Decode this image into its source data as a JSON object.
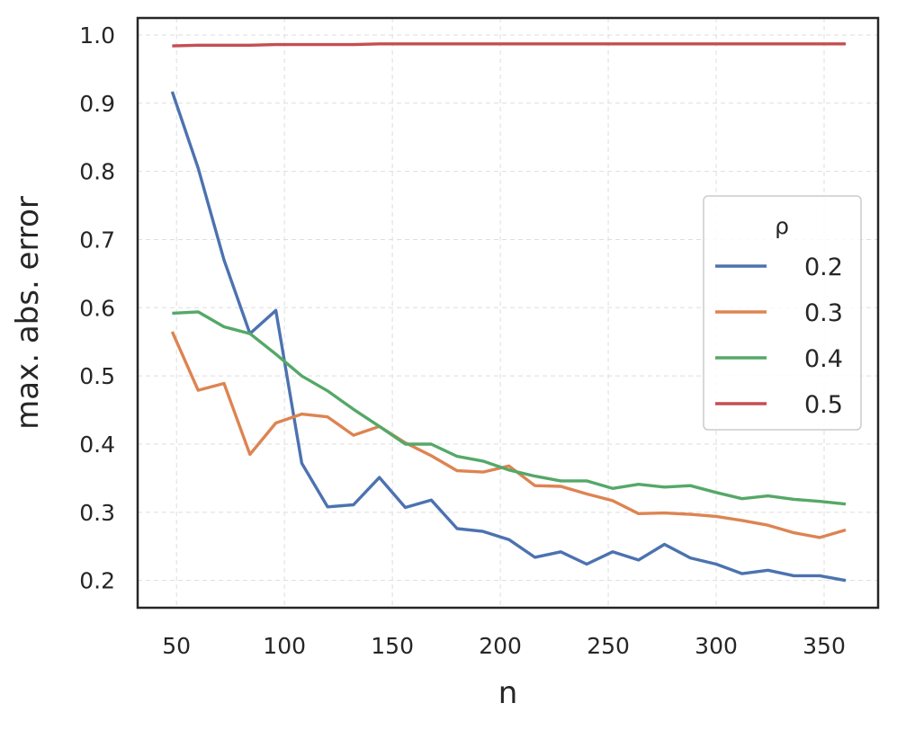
{
  "chart_data": {
    "type": "line",
    "xlabel": "n",
    "ylabel": "max. abs. error",
    "xlim": [
      32,
      375
    ],
    "ylim": [
      0.16,
      1.025
    ],
    "xticks": [
      50,
      100,
      150,
      200,
      250,
      300,
      350
    ],
    "xtick_labels": [
      "50",
      "100",
      "150",
      "200",
      "250",
      "300",
      "350"
    ],
    "yticks": [
      0.2,
      0.3,
      0.4,
      0.5,
      0.6,
      0.7,
      0.8,
      0.9,
      1.0
    ],
    "ytick_labels": [
      "0.2",
      "0.3",
      "0.4",
      "0.5",
      "0.6",
      "0.7",
      "0.8",
      "0.9",
      "1.0"
    ],
    "grid": true,
    "legend": {
      "title": "ρ",
      "placement": "center-right"
    },
    "x": [
      48,
      60,
      72,
      84,
      96,
      108,
      120,
      132,
      144,
      156,
      168,
      180,
      192,
      204,
      216,
      228,
      240,
      252,
      264,
      276,
      288,
      300,
      312,
      324,
      336,
      348,
      360
    ],
    "series": [
      {
        "name": "0.2",
        "color": "#4c72b0",
        "values": [
          0.917,
          0.805,
          0.67,
          0.562,
          0.596,
          0.372,
          0.308,
          0.311,
          0.351,
          0.307,
          0.318,
          0.276,
          0.272,
          0.26,
          0.234,
          0.242,
          0.224,
          0.242,
          0.23,
          0.253,
          0.233,
          0.224,
          0.21,
          0.215,
          0.207,
          0.207,
          0.2
        ]
      },
      {
        "name": "0.3",
        "color": "#dd8452",
        "values": [
          0.565,
          0.479,
          0.489,
          0.385,
          0.431,
          0.444,
          0.44,
          0.413,
          0.426,
          0.402,
          0.383,
          0.361,
          0.359,
          0.368,
          0.339,
          0.338,
          0.327,
          0.317,
          0.298,
          0.299,
          0.297,
          0.294,
          0.288,
          0.281,
          0.27,
          0.263,
          0.274
        ]
      },
      {
        "name": "0.4",
        "color": "#55a868",
        "values": [
          0.592,
          0.594,
          0.572,
          0.562,
          0.532,
          0.5,
          0.478,
          0.451,
          0.426,
          0.4,
          0.4,
          0.382,
          0.375,
          0.362,
          0.353,
          0.346,
          0.346,
          0.335,
          0.341,
          0.337,
          0.339,
          0.329,
          0.32,
          0.324,
          0.319,
          0.316,
          0.312
        ]
      },
      {
        "name": "0.5",
        "color": "#c44e52",
        "values": [
          0.984,
          0.985,
          0.985,
          0.985,
          0.986,
          0.986,
          0.986,
          0.986,
          0.987,
          0.987,
          0.987,
          0.987,
          0.987,
          0.987,
          0.987,
          0.987,
          0.987,
          0.987,
          0.987,
          0.987,
          0.987,
          0.987,
          0.987,
          0.987,
          0.987,
          0.987,
          0.987
        ]
      }
    ]
  }
}
